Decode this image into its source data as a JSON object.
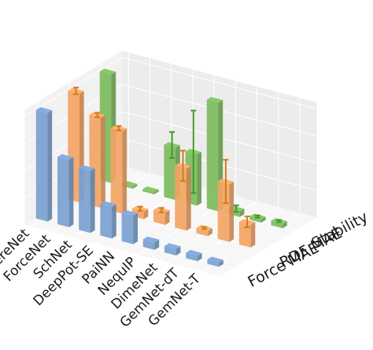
{
  "chart_data": {
    "type": "bar",
    "categories": [
      "SphereNet",
      "ForceNet",
      "SchNet",
      "DeepPot-SE",
      "PaiNN",
      "NequIP",
      "DimeNet",
      "GemNet-dT",
      "GemNet-T"
    ],
    "series": [
      {
        "name": "Force MAE",
        "values": [
          1.0,
          0.62,
          0.57,
          0.29,
          0.26,
          0.07,
          0.06,
          0.05,
          0.04
        ],
        "errors": null,
        "color": "#7aa0cf"
      },
      {
        "name": "RDF MAE",
        "values": [
          1.0,
          0.83,
          0.76,
          0.07,
          0.11,
          0.57,
          0.05,
          0.53,
          0.21
        ],
        "errors": [
          0.03,
          0.02,
          0.02,
          0.02,
          0.02,
          0.14,
          0.01,
          0.2,
          0.05
        ],
        "color": "#f3a464"
      },
      {
        "name": "Stability",
        "values": [
          1.0,
          0.02,
          0.02,
          0.48,
          0.47,
          1.0,
          0.05,
          0.03,
          0.04
        ],
        "errors": [
          0.0,
          0.0,
          0.0,
          0.12,
          0.38,
          0.0,
          0.03,
          0.01,
          0.01
        ],
        "color": "#7dba5e"
      }
    ],
    "error_color": "#d4781e",
    "stability_error_color": "#3f9a2c",
    "grid": true,
    "legend": "none"
  }
}
